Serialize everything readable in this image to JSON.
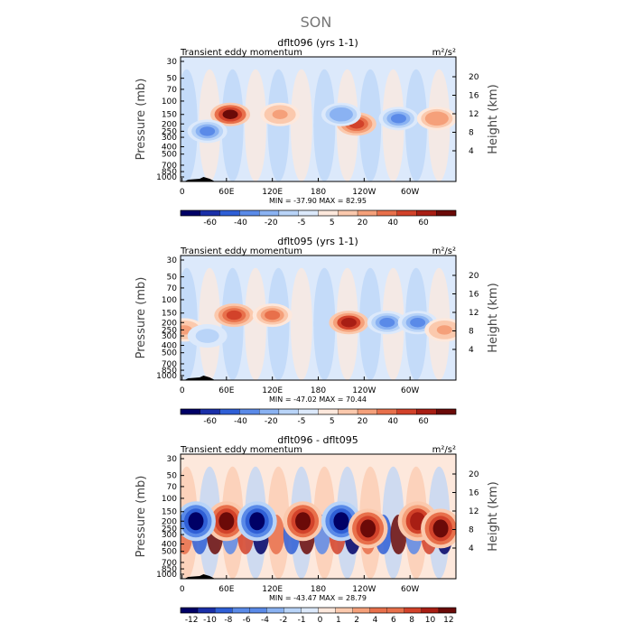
{
  "figure_title": "SON",
  "chart_data": [
    {
      "type": "heatmap",
      "title": "dflt096 (yrs 1-1)",
      "subtitle": "Transient eddy momentum",
      "units": "m²/s²",
      "ylabel": "Pressure (mb)",
      "ylabel_right": "Height (km)",
      "x_ticks": [
        "0",
        "60E",
        "120E",
        "180",
        "120W",
        "60W"
      ],
      "y_ticks": [
        "30",
        "50",
        "70",
        "100",
        "150",
        "200",
        "250",
        "300",
        "400",
        "500",
        "700",
        "850",
        "1000"
      ],
      "height_ticks": [
        "20",
        "16",
        "12",
        "8",
        "4"
      ],
      "stats": "MIN = -37.90   MAX =  82.95",
      "colorbar_labels": [
        "-60",
        "-40",
        "-20",
        "-5",
        "5",
        "20",
        "40",
        "60"
      ],
      "features": [
        {
          "lon": 65,
          "p": 150,
          "value": 60
        },
        {
          "lon": 130,
          "p": 150,
          "value": 20
        },
        {
          "lon": 35,
          "p": 250,
          "value": -30
        },
        {
          "lon": 230,
          "p": 200,
          "value": 45
        },
        {
          "lon": 210,
          "p": 150,
          "value": -25
        },
        {
          "lon": 285,
          "p": 170,
          "value": -35
        },
        {
          "lon": 335,
          "p": 170,
          "value": 25
        }
      ]
    },
    {
      "type": "heatmap",
      "title": "dflt095 (yrs 1-1)",
      "subtitle": "Transient eddy momentum",
      "units": "m²/s²",
      "ylabel": "Pressure (mb)",
      "ylabel_right": "Height (km)",
      "x_ticks": [
        "0",
        "60E",
        "120E",
        "180",
        "120W",
        "60W"
      ],
      "y_ticks": [
        "30",
        "50",
        "70",
        "100",
        "150",
        "200",
        "250",
        "300",
        "400",
        "500",
        "700",
        "850",
        "1000"
      ],
      "height_ticks": [
        "20",
        "16",
        "12",
        "8",
        "4"
      ],
      "stats": "MIN = -47.02   MAX =  70.44",
      "colorbar_labels": [
        "-60",
        "-40",
        "-20",
        "-5",
        "5",
        "20",
        "40",
        "60"
      ],
      "features": [
        {
          "lon": 70,
          "p": 160,
          "value": 40
        },
        {
          "lon": 120,
          "p": 160,
          "value": 30
        },
        {
          "lon": 220,
          "p": 200,
          "value": 55
        },
        {
          "lon": 270,
          "p": 200,
          "value": -35
        },
        {
          "lon": 310,
          "p": 200,
          "value": -30
        },
        {
          "lon": 345,
          "p": 250,
          "value": 20
        },
        {
          "lon": 5,
          "p": 250,
          "value": 20
        },
        {
          "lon": 35,
          "p": 300,
          "value": -15
        }
      ]
    },
    {
      "type": "heatmap",
      "title": "dflt096 - dflt095",
      "subtitle": "Transient eddy momentum",
      "units": "m²/s²",
      "ylabel": "Pressure (mb)",
      "ylabel_right": "Height (km)",
      "x_ticks": [
        "0",
        "60E",
        "120E",
        "180",
        "120W",
        "60W"
      ],
      "y_ticks": [
        "30",
        "50",
        "70",
        "100",
        "150",
        "200",
        "250",
        "300",
        "400",
        "500",
        "700",
        "850",
        "1000"
      ],
      "height_ticks": [
        "20",
        "16",
        "12",
        "8",
        "4"
      ],
      "stats": "MIN = -43.47   MAX =  28.79",
      "colorbar_labels": [
        "-12",
        "-10",
        "-8",
        "-6",
        "-4",
        "-2",
        "-1",
        "0",
        "1",
        "2",
        "4",
        "6",
        "8",
        "10",
        "12"
      ],
      "features": [
        {
          "lon": 60,
          "p": 200,
          "value": 12
        },
        {
          "lon": 100,
          "p": 200,
          "value": -12
        },
        {
          "lon": 160,
          "p": 200,
          "value": 12
        },
        {
          "lon": 210,
          "p": 200,
          "value": -12
        },
        {
          "lon": 245,
          "p": 250,
          "value": 12
        },
        {
          "lon": 310,
          "p": 200,
          "value": 10
        },
        {
          "lon": 20,
          "p": 200,
          "value": -12
        },
        {
          "lon": 340,
          "p": 250,
          "value": 12
        }
      ]
    }
  ],
  "colors": {
    "scale": [
      "#000066",
      "#1a2fa8",
      "#2f5fd6",
      "#5a8ae8",
      "#8ab2f2",
      "#b9d4f8",
      "#dce9fb",
      "#fde8dc",
      "#fbc9ad",
      "#f5a07a",
      "#e8704b",
      "#d2422a",
      "#a81e14",
      "#6b0a08"
    ]
  }
}
